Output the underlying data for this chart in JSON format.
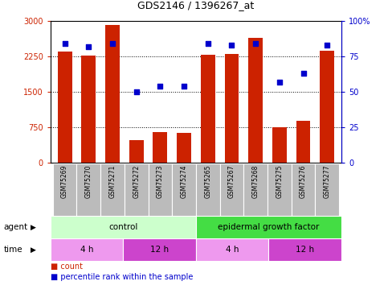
{
  "title": "GDS2146 / 1396267_at",
  "samples": [
    "GSM75269",
    "GSM75270",
    "GSM75271",
    "GSM75272",
    "GSM75273",
    "GSM75274",
    "GSM75265",
    "GSM75267",
    "GSM75268",
    "GSM75275",
    "GSM75276",
    "GSM75277"
  ],
  "counts": [
    2350,
    2270,
    2920,
    490,
    650,
    630,
    2290,
    2310,
    2650,
    750,
    900,
    2380
  ],
  "percentile": [
    84,
    82,
    84,
    50,
    54,
    54,
    84,
    83,
    84,
    57,
    63,
    83
  ],
  "ylim_left": [
    0,
    3000
  ],
  "ylim_right": [
    0,
    100
  ],
  "yticks_left": [
    0,
    750,
    1500,
    2250,
    3000
  ],
  "ytick_labels_left": [
    "0",
    "750",
    "1500",
    "2250",
    "3000"
  ],
  "yticks_right": [
    0,
    25,
    50,
    75,
    100
  ],
  "ytick_labels_right": [
    "0",
    "25",
    "50",
    "75",
    "100%"
  ],
  "bar_color": "#cc2200",
  "dot_color": "#0000cc",
  "grid_color": "#000000",
  "agent_groups": [
    {
      "label": "control",
      "start": 0,
      "end": 6,
      "color": "#ccffcc"
    },
    {
      "label": "epidermal growth factor",
      "start": 6,
      "end": 12,
      "color": "#44dd44"
    }
  ],
  "time_groups": [
    {
      "label": "4 h",
      "start": 0,
      "end": 3,
      "color": "#ee99ee"
    },
    {
      "label": "12 h",
      "start": 3,
      "end": 6,
      "color": "#cc44cc"
    },
    {
      "label": "4 h",
      "start": 6,
      "end": 9,
      "color": "#ee99ee"
    },
    {
      "label": "12 h",
      "start": 9,
      "end": 12,
      "color": "#cc44cc"
    }
  ],
  "bar_color_legend": "#cc2200",
  "dot_color_legend": "#0000cc",
  "tick_bg_color": "#bbbbbb",
  "figsize": [
    4.83,
    3.75
  ],
  "dpi": 100
}
